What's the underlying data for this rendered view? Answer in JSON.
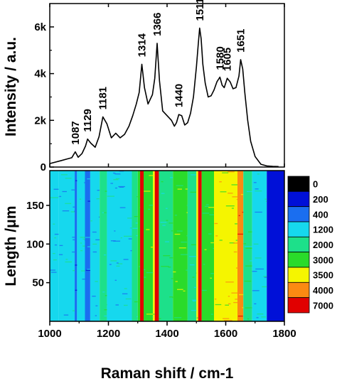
{
  "chart_data": [
    {
      "type": "line",
      "ylabel": "Intensity / a.u.",
      "xlim": [
        1000,
        1800
      ],
      "ylim": [
        0,
        7000
      ],
      "yticks": [
        0,
        2000,
        4000,
        6000
      ],
      "ytick_labels": [
        "0",
        "2k",
        "4k",
        "6k"
      ],
      "series": [
        {
          "x": [
            1000,
            1040,
            1060,
            1075,
            1087,
            1097,
            1110,
            1122,
            1129,
            1140,
            1155,
            1168,
            1181,
            1195,
            1210,
            1225,
            1240,
            1255,
            1270,
            1283,
            1295,
            1305,
            1314,
            1323,
            1335,
            1350,
            1358,
            1366,
            1374,
            1385,
            1400,
            1415,
            1425,
            1432,
            1440,
            1450,
            1460,
            1470,
            1480,
            1490,
            1500,
            1506,
            1511,
            1516,
            1522,
            1530,
            1540,
            1550,
            1560,
            1570,
            1580,
            1588,
            1595,
            1605,
            1615,
            1625,
            1635,
            1645,
            1651,
            1658,
            1665,
            1675,
            1685,
            1700,
            1720,
            1740,
            1760,
            1780
          ],
          "y": [
            150,
            280,
            350,
            400,
            650,
            420,
            580,
            900,
            1200,
            1020,
            850,
            1300,
            2150,
            1850,
            1250,
            1450,
            1250,
            1400,
            1750,
            2200,
            2700,
            3200,
            4400,
            3400,
            2700,
            3100,
            3800,
            5300,
            3700,
            2400,
            2200,
            2000,
            1750,
            1900,
            2250,
            2200,
            1800,
            1900,
            2300,
            3000,
            4300,
            5200,
            5950,
            5500,
            4400,
            3600,
            3000,
            3050,
            3300,
            3650,
            3850,
            3500,
            3400,
            3800,
            3650,
            3350,
            3400,
            3900,
            4600,
            4200,
            3200,
            2000,
            1100,
            450,
            120,
            50,
            30,
            20
          ]
        }
      ],
      "annotations": [
        "1087",
        "1129",
        "1181",
        "1314",
        "1366",
        "1440",
        "1511",
        "1580",
        "1605",
        "1651"
      ],
      "annotation_x": [
        1087,
        1129,
        1181,
        1314,
        1366,
        1440,
        1511,
        1580,
        1605,
        1651
      ]
    },
    {
      "type": "heatmap",
      "title": "",
      "xlabel": "Raman shift / cm-1",
      "ylabel": "Length /μm",
      "xlim": [
        1000,
        1800
      ],
      "ylim": [
        0,
        195
      ],
      "xticks": [
        1000,
        1200,
        1400,
        1600,
        1800
      ],
      "yticks": [
        50,
        100,
        150
      ],
      "colorbar": {
        "labels": [
          "0",
          "200",
          "400",
          "1200",
          "2000",
          "3000",
          "3500",
          "4000",
          "7000"
        ],
        "colors": [
          "#000000",
          "#0010d8",
          "#1a6ef0",
          "#16d8ee",
          "#1de08a",
          "#2adb2a",
          "#f5f500",
          "#fb8a12",
          "#e10000"
        ]
      },
      "bands": [
        {
          "x": [
            1000,
            1030
          ],
          "level": 3
        },
        {
          "x": [
            1030,
            1085
          ],
          "level": 3
        },
        {
          "x": [
            1085,
            1093
          ],
          "level": 2
        },
        {
          "x": [
            1093,
            1120
          ],
          "level": 3
        },
        {
          "x": [
            1120,
            1138
          ],
          "level": 2
        },
        {
          "x": [
            1138,
            1170
          ],
          "level": 3
        },
        {
          "x": [
            1170,
            1195
          ],
          "level": 4
        },
        {
          "x": [
            1195,
            1280
          ],
          "level": 3
        },
        {
          "x": [
            1280,
            1300
          ],
          "level": 4
        },
        {
          "x": [
            1300,
            1308
          ],
          "level": 5
        },
        {
          "x": [
            1308,
            1320
          ],
          "level": 8
        },
        {
          "x": [
            1320,
            1352
          ],
          "level": 5
        },
        {
          "x": [
            1352,
            1358
          ],
          "level": 6
        },
        {
          "x": [
            1358,
            1372
          ],
          "level": 8
        },
        {
          "x": [
            1372,
            1420
          ],
          "level": 4
        },
        {
          "x": [
            1420,
            1470
          ],
          "level": 5
        },
        {
          "x": [
            1470,
            1500
          ],
          "level": 4
        },
        {
          "x": [
            1500,
            1506
          ],
          "level": 6
        },
        {
          "x": [
            1506,
            1518
          ],
          "level": 8
        },
        {
          "x": [
            1518,
            1560
          ],
          "level": 5
        },
        {
          "x": [
            1560,
            1640
          ],
          "level": 6
        },
        {
          "x": [
            1640,
            1660
          ],
          "level": 7
        },
        {
          "x": [
            1660,
            1690
          ],
          "level": 4
        },
        {
          "x": [
            1690,
            1740
          ],
          "level": 3
        },
        {
          "x": [
            1740,
            1800
          ],
          "level": 1
        }
      ]
    }
  ]
}
